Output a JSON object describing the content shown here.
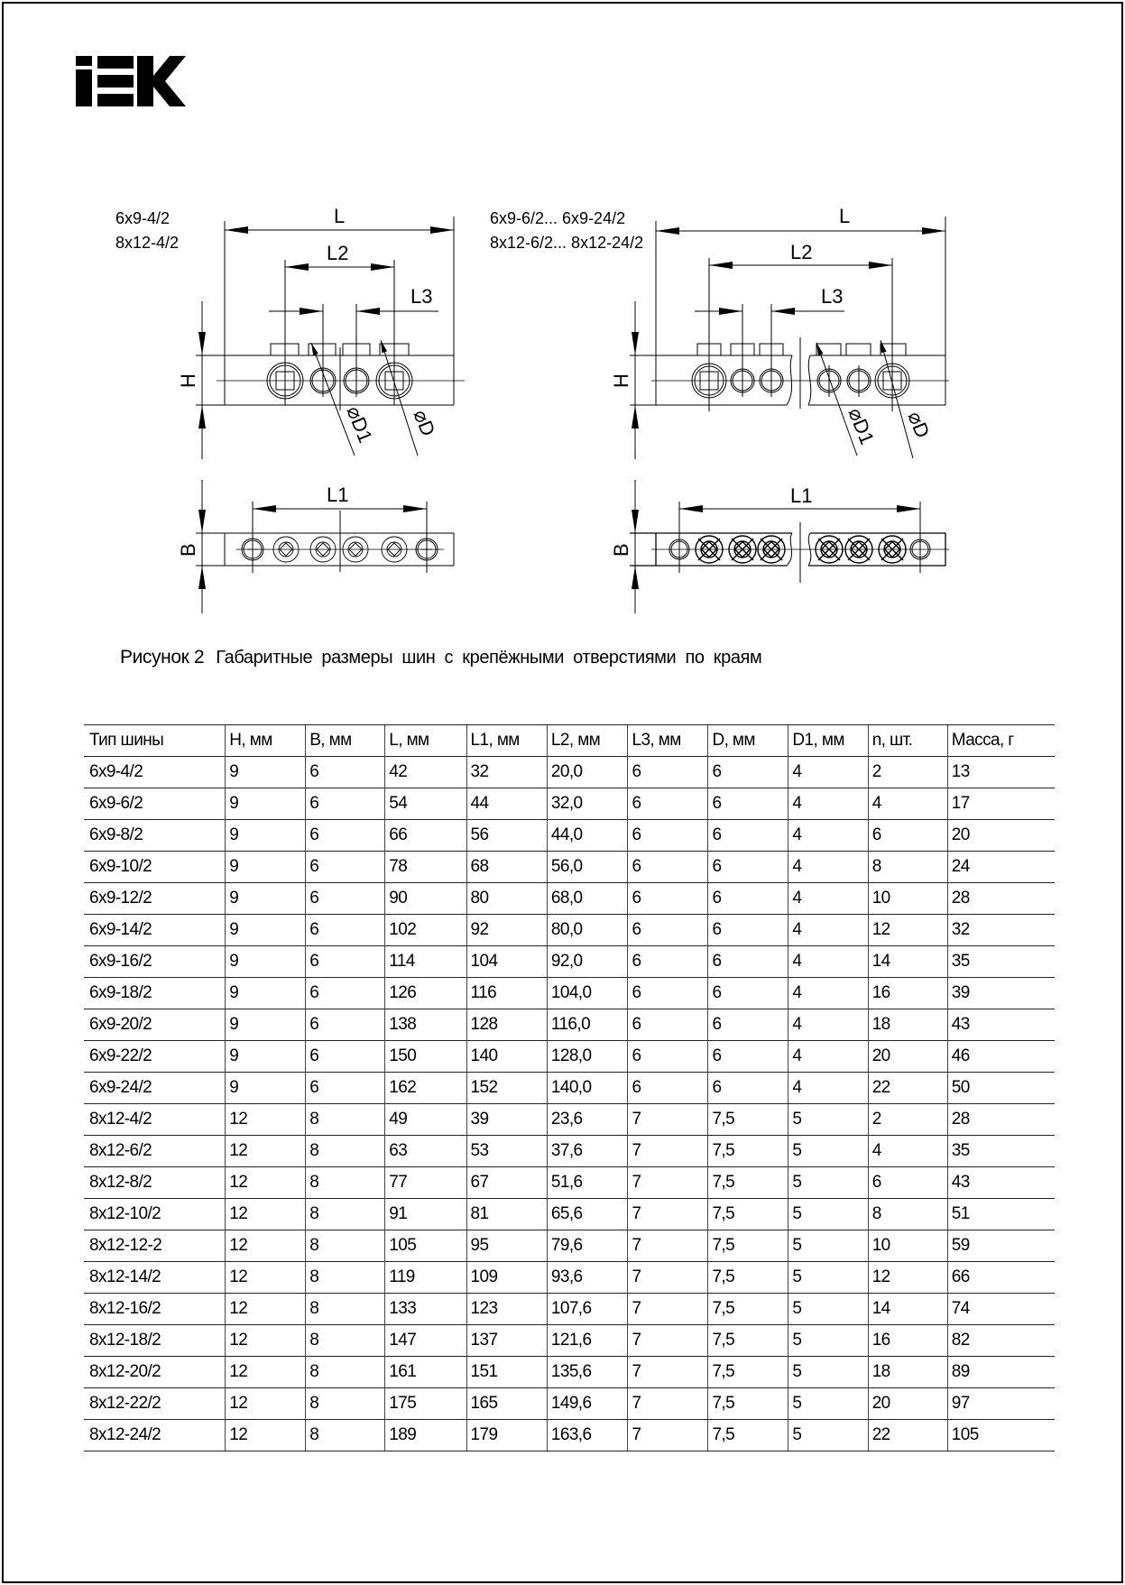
{
  "logo": {
    "text": "IEK"
  },
  "figure": {
    "left": {
      "models": [
        "6x9-4/2",
        "8x12-4/2"
      ],
      "dims": {
        "L": "L",
        "L1": "L1",
        "L2": "L2",
        "L3": "L3",
        "H": "H",
        "B": "B",
        "D": "⌀D",
        "D1": "⌀D1"
      }
    },
    "right": {
      "models": [
        "6x9-6/2... 6x9-24/2",
        "8x12-6/2... 8x12-24/2"
      ],
      "dims": {
        "L": "L",
        "L1": "L1",
        "L2": "L2",
        "L3": "L3",
        "H": "H",
        "B": "B",
        "D": "⌀D",
        "D1": "⌀D1"
      }
    },
    "caption_number": "Рисунок 2",
    "caption_text": "Габаритные размеры шин с крепёжными отверстиями по краям"
  },
  "table": {
    "headers": [
      "Тип шины",
      "H, мм",
      "B, мм",
      "L, мм",
      "L1, мм",
      "L2, мм",
      "L3, мм",
      "D, мм",
      "D1, мм",
      "n, шт.",
      "Масса, г"
    ],
    "rows": [
      [
        "6x9-4/2",
        "9",
        "6",
        "42",
        "32",
        "20,0",
        "6",
        "6",
        "4",
        "2",
        "13"
      ],
      [
        "6x9-6/2",
        "9",
        "6",
        "54",
        "44",
        "32,0",
        "6",
        "6",
        "4",
        "4",
        "17"
      ],
      [
        "6x9-8/2",
        "9",
        "6",
        "66",
        "56",
        "44,0",
        "6",
        "6",
        "4",
        "6",
        "20"
      ],
      [
        "6x9-10/2",
        "9",
        "6",
        "78",
        "68",
        "56,0",
        "6",
        "6",
        "4",
        "8",
        "24"
      ],
      [
        "6x9-12/2",
        "9",
        "6",
        "90",
        "80",
        "68,0",
        "6",
        "6",
        "4",
        "10",
        "28"
      ],
      [
        "6x9-14/2",
        "9",
        "6",
        "102",
        "92",
        "80,0",
        "6",
        "6",
        "4",
        "12",
        "32"
      ],
      [
        "6x9-16/2",
        "9",
        "6",
        "114",
        "104",
        "92,0",
        "6",
        "6",
        "4",
        "14",
        "35"
      ],
      [
        "6x9-18/2",
        "9",
        "6",
        "126",
        "116",
        "104,0",
        "6",
        "6",
        "4",
        "16",
        "39"
      ],
      [
        "6x9-20/2",
        "9",
        "6",
        "138",
        "128",
        "116,0",
        "6",
        "6",
        "4",
        "18",
        "43"
      ],
      [
        "6x9-22/2",
        "9",
        "6",
        "150",
        "140",
        "128,0",
        "6",
        "6",
        "4",
        "20",
        "46"
      ],
      [
        "6x9-24/2",
        "9",
        "6",
        "162",
        "152",
        "140,0",
        "6",
        "6",
        "4",
        "22",
        "50"
      ],
      [
        "8x12-4/2",
        "12",
        "8",
        "49",
        "39",
        "23,6",
        "7",
        "7,5",
        "5",
        "2",
        "28"
      ],
      [
        "8x12-6/2",
        "12",
        "8",
        "63",
        "53",
        "37,6",
        "7",
        "7,5",
        "5",
        "4",
        "35"
      ],
      [
        "8x12-8/2",
        "12",
        "8",
        "77",
        "67",
        "51,6",
        "7",
        "7,5",
        "5",
        "6",
        "43"
      ],
      [
        "8x12-10/2",
        "12",
        "8",
        "91",
        "81",
        "65,6",
        "7",
        "7,5",
        "5",
        "8",
        "51"
      ],
      [
        "8x12-12-2",
        "12",
        "8",
        "105",
        "95",
        "79,6",
        "7",
        "7,5",
        "5",
        "10",
        "59"
      ],
      [
        "8x12-14/2",
        "12",
        "8",
        "119",
        "109",
        "93,6",
        "7",
        "7,5",
        "5",
        "12",
        "66"
      ],
      [
        "8x12-16/2",
        "12",
        "8",
        "133",
        "123",
        "107,6",
        "7",
        "7,5",
        "5",
        "14",
        "74"
      ],
      [
        "8x12-18/2",
        "12",
        "8",
        "147",
        "137",
        "121,6",
        "7",
        "7,5",
        "5",
        "16",
        "82"
      ],
      [
        "8x12-20/2",
        "12",
        "8",
        "161",
        "151",
        "135,6",
        "7",
        "7,5",
        "5",
        "18",
        "89"
      ],
      [
        "8x12-22/2",
        "12",
        "8",
        "175",
        "165",
        "149,6",
        "7",
        "7,5",
        "5",
        "20",
        "97"
      ],
      [
        "8x12-24/2",
        "12",
        "8",
        "189",
        "179",
        "163,6",
        "7",
        "7,5",
        "5",
        "22",
        "105"
      ]
    ]
  }
}
